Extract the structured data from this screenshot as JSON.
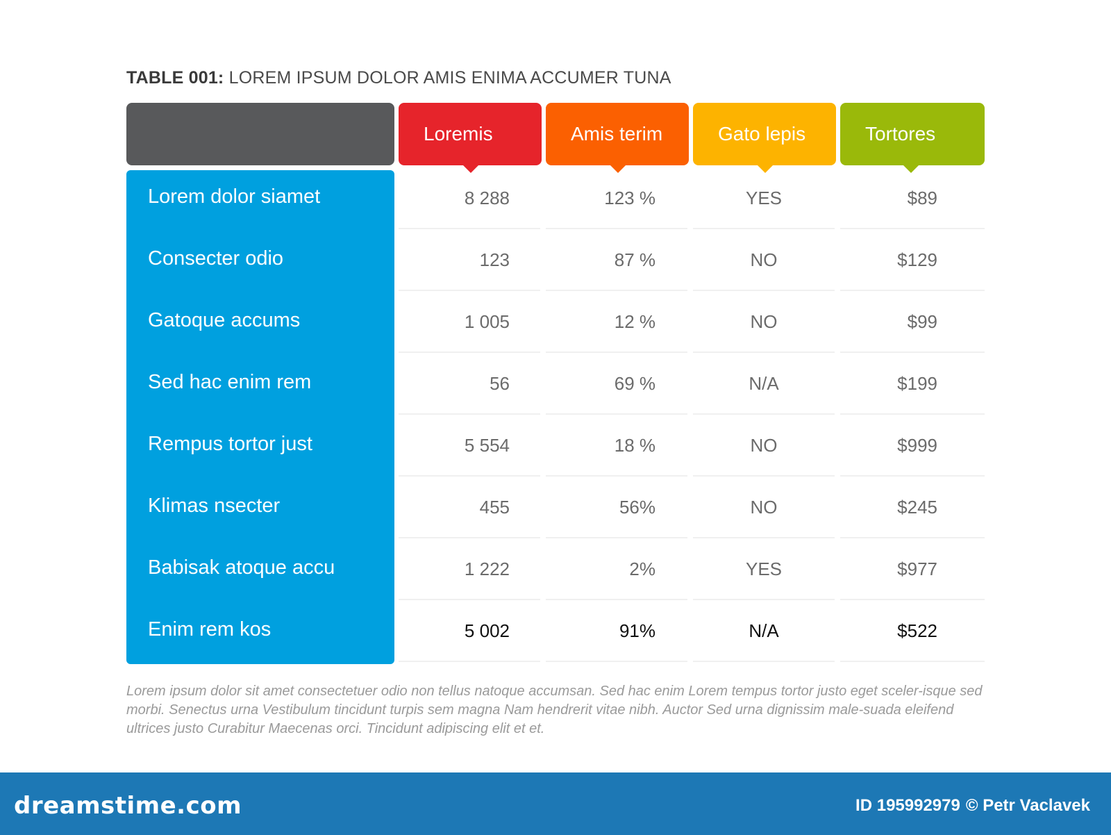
{
  "title": {
    "prefix": "TABLE 001:",
    "text": " LOREM IPSUM DOLOR AMIS ENIMA ACCUMER TUNA"
  },
  "columns": [
    {
      "label": "Loremis",
      "color": "#e6242b"
    },
    {
      "label": "Amis terim",
      "color": "#fb6001"
    },
    {
      "label": "Gato lepis",
      "color": "#fdb300"
    },
    {
      "label": "Tortores",
      "color": "#9ab90a"
    }
  ],
  "row_color": "#00a0df",
  "rows": [
    {
      "label": "Lorem dolor siamet",
      "values": [
        "8 288",
        "123 %",
        "YES",
        "$89"
      ]
    },
    {
      "label": "Consecter odio",
      "values": [
        "123",
        "87 %",
        "NO",
        "$129"
      ]
    },
    {
      "label": "Gatoque accums",
      "values": [
        "1 005",
        "12 %",
        "NO",
        "$99"
      ]
    },
    {
      "label": "Sed hac enim rem",
      "values": [
        "56",
        "69 %",
        "N/A",
        "$199"
      ]
    },
    {
      "label": "Rempus tortor just",
      "values": [
        "5 554",
        "18 %",
        "NO",
        "$999"
      ]
    },
    {
      "label": "Klimas nsecter",
      "values": [
        "455",
        "56%",
        "NO",
        "$245"
      ]
    },
    {
      "label": "Babisak atoque accu",
      "values": [
        "1 222",
        "2%",
        "YES",
        "$977"
      ]
    },
    {
      "label": "Enim rem kos",
      "values": [
        "5 002",
        "91%",
        "N/A",
        "$522"
      ]
    }
  ],
  "note": "Lorem ipsum dolor sit amet consectetuer odio non tellus natoque accumsan. Sed hac enim Lorem tempus tortor justo eget sceler-isque sed morbi. Senectus urna Vestibulum tincidunt turpis sem magna Nam hendrerit vitae nibh. Auctor Sed urna dignissim male-suada eleifend ultrices justo Curabitur Maecenas orci. Tincidunt adipiscing elit et et.",
  "footer": {
    "brand": "dreamstime.com",
    "id_text": "ID 195992979",
    "credit": "© Petr Vaclavek",
    "color": "#1d78b5"
  }
}
